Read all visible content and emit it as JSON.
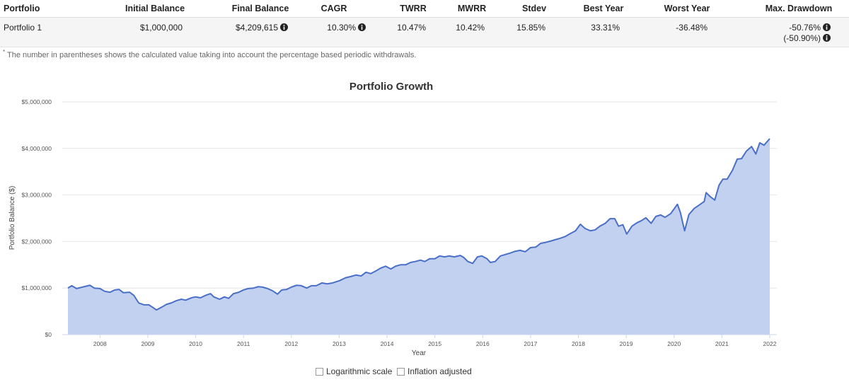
{
  "table": {
    "headers": [
      "Portfolio",
      "Initial Balance",
      "Final Balance",
      "CAGR",
      "TWRR",
      "MWRR",
      "Stdev",
      "Best Year",
      "Worst Year",
      "Max. Drawdown"
    ],
    "rows": [
      {
        "cells": [
          "Portfolio 1",
          "$1,000,000",
          "$4,209,615",
          "10.30%",
          "10.47%",
          "10.42%",
          "15.85%",
          "33.31%",
          "-36.48%",
          "-50.76%"
        ],
        "note": "(-50.90%)"
      }
    ],
    "footnote_marker": "*",
    "footnote": "The number in parentheses shows the calculated value taking into account the percentage based periodic withdrawals."
  },
  "chart_data": {
    "type": "area",
    "title": "Portfolio Growth",
    "x_label": "Year",
    "y_label": "Portfolio Balance ($)",
    "color": "#4a6fc7",
    "fill_color": "#c2d1f0",
    "grid": true,
    "xlim": [
      2007.33,
      2022
    ],
    "xticks": [
      2008,
      2009,
      2010,
      2011,
      2012,
      2013,
      2014,
      2015,
      2016,
      2017,
      2018,
      2019,
      2020,
      2021,
      2022
    ],
    "ylim": [
      0,
      5000000
    ],
    "yticks": [
      {
        "value": 0,
        "label": "$0"
      },
      {
        "value": 1000000,
        "label": "$1,000,000"
      },
      {
        "value": 2000000,
        "label": "$2,000,000"
      },
      {
        "value": 3000000,
        "label": "$3,000,000"
      },
      {
        "value": 4000000,
        "label": "$4,000,000"
      },
      {
        "value": 5000000,
        "label": "$5,000,000"
      }
    ],
    "x": [
      2007.33,
      2007.41,
      2007.51,
      2007.63,
      2007.79,
      2007.88,
      2008.0,
      2008.1,
      2008.21,
      2008.31,
      2008.4,
      2008.49,
      2008.62,
      2008.71,
      2008.81,
      2008.92,
      2009.02,
      2009.11,
      2009.18,
      2009.29,
      2009.39,
      2009.49,
      2009.6,
      2009.7,
      2009.79,
      2009.91,
      2010.0,
      2010.1,
      2010.2,
      2010.31,
      2010.38,
      2010.5,
      2010.6,
      2010.69,
      2010.79,
      2010.9,
      2011.0,
      2011.1,
      2011.21,
      2011.31,
      2011.4,
      2011.5,
      2011.61,
      2011.71,
      2011.8,
      2011.9,
      2012.0,
      2012.11,
      2012.21,
      2012.32,
      2012.42,
      2012.52,
      2012.64,
      2012.75,
      2012.86,
      2013.01,
      2013.13,
      2013.25,
      2013.35,
      2013.46,
      2013.56,
      2013.66,
      2013.77,
      2013.87,
      2013.97,
      2014.08,
      2014.18,
      2014.28,
      2014.39,
      2014.49,
      2014.59,
      2014.7,
      2014.79,
      2014.89,
      2015.0,
      2015.1,
      2015.2,
      2015.3,
      2015.41,
      2015.53,
      2015.6,
      2015.69,
      2015.79,
      2015.89,
      2015.98,
      2016.09,
      2016.16,
      2016.26,
      2016.37,
      2016.47,
      2016.57,
      2016.68,
      2016.78,
      2016.89,
      2017.0,
      2017.11,
      2017.21,
      2017.31,
      2017.42,
      2017.52,
      2017.62,
      2017.73,
      2017.83,
      2017.94,
      2018.04,
      2018.14,
      2018.25,
      2018.35,
      2018.45,
      2018.56,
      2018.66,
      2018.76,
      2018.84,
      2018.93,
      2019.01,
      2019.12,
      2019.22,
      2019.32,
      2019.41,
      2019.52,
      2019.62,
      2019.72,
      2019.81,
      2019.93,
      2020.07,
      2020.13,
      2020.22,
      2020.31,
      2020.42,
      2020.52,
      2020.63,
      2020.67,
      2020.76,
      2020.85,
      2020.94,
      2021.02,
      2021.11,
      2021.22,
      2021.32,
      2021.41,
      2021.51,
      2021.62,
      2021.71,
      2021.79,
      2021.88,
      2022.0
    ],
    "values": [
      1000000,
      1050000,
      990000,
      1020000,
      1060000,
      1000000,
      990000,
      930000,
      910000,
      960000,
      970000,
      900000,
      910000,
      840000,
      680000,
      640000,
      640000,
      580000,
      530000,
      590000,
      650000,
      680000,
      730000,
      760000,
      740000,
      790000,
      810000,
      790000,
      840000,
      880000,
      810000,
      760000,
      810000,
      780000,
      880000,
      910000,
      960000,
      990000,
      1000000,
      1030000,
      1020000,
      990000,
      940000,
      870000,
      960000,
      970000,
      1020000,
      1060000,
      1050000,
      1000000,
      1050000,
      1050000,
      1110000,
      1090000,
      1110000,
      1160000,
      1220000,
      1250000,
      1280000,
      1260000,
      1340000,
      1310000,
      1370000,
      1430000,
      1470000,
      1410000,
      1470000,
      1500000,
      1500000,
      1550000,
      1570000,
      1600000,
      1570000,
      1630000,
      1630000,
      1690000,
      1670000,
      1690000,
      1670000,
      1700000,
      1660000,
      1570000,
      1530000,
      1670000,
      1690000,
      1630000,
      1550000,
      1570000,
      1690000,
      1720000,
      1750000,
      1790000,
      1810000,
      1780000,
      1870000,
      1880000,
      1960000,
      1980000,
      2010000,
      2040000,
      2070000,
      2110000,
      2170000,
      2230000,
      2370000,
      2280000,
      2230000,
      2250000,
      2330000,
      2390000,
      2490000,
      2490000,
      2330000,
      2360000,
      2160000,
      2330000,
      2400000,
      2450000,
      2510000,
      2390000,
      2540000,
      2570000,
      2520000,
      2600000,
      2800000,
      2630000,
      2230000,
      2580000,
      2710000,
      2780000,
      2860000,
      3050000,
      2960000,
      2890000,
      3210000,
      3340000,
      3340000,
      3530000,
      3770000,
      3780000,
      3940000,
      4040000,
      3880000,
      4120000,
      4070000,
      4209615
    ]
  },
  "controls": [
    {
      "label": "Logarithmic scale",
      "checked": false
    },
    {
      "label": "Inflation adjusted",
      "checked": false
    }
  ]
}
